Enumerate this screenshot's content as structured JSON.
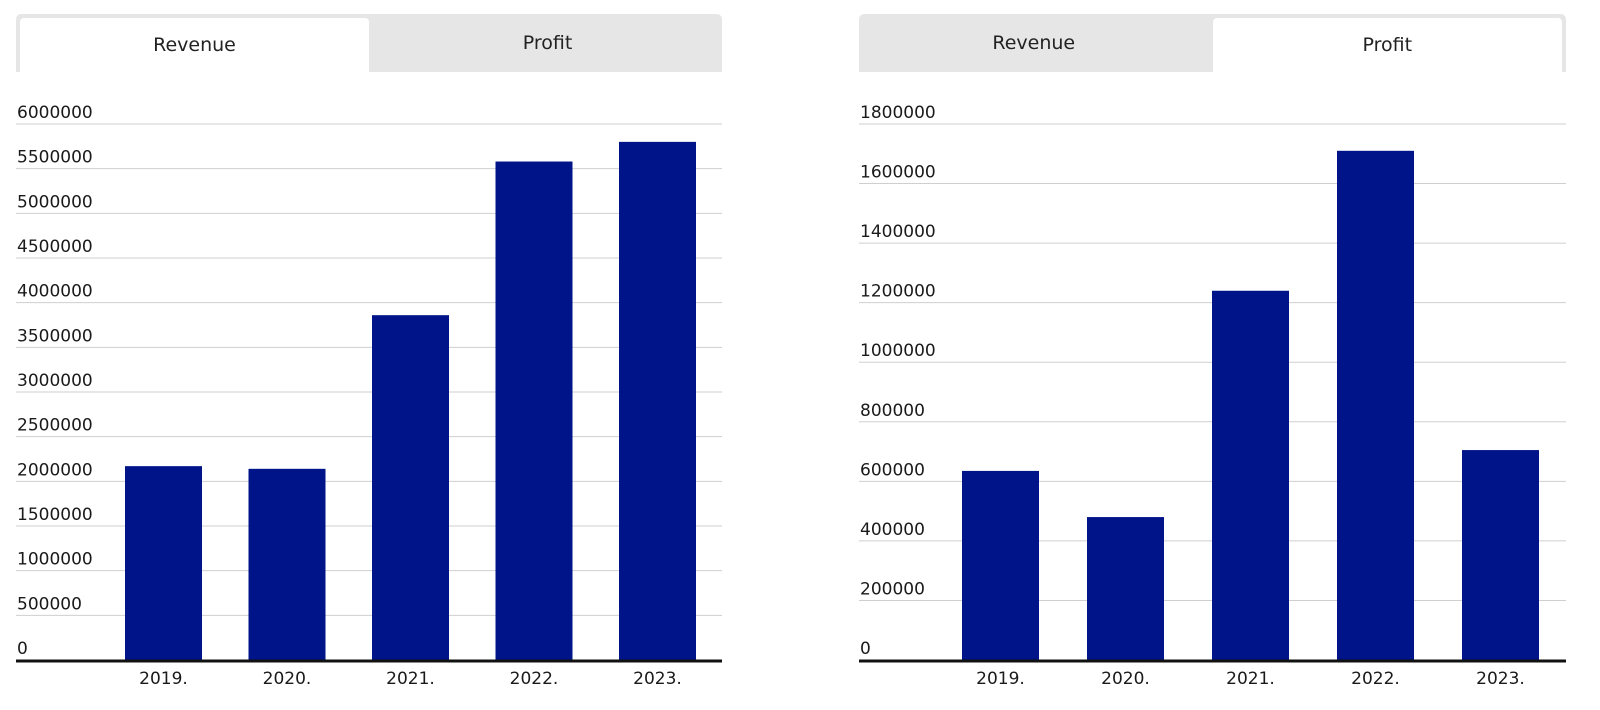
{
  "tabs": {
    "revenue_label": "Revenue",
    "profit_label": "Profit"
  },
  "colors": {
    "bar": "#001489",
    "grid": "#cfcfcf",
    "baseline": "#111111"
  },
  "chart_data": [
    {
      "type": "bar",
      "active_tab": "Revenue",
      "categories": [
        "2019.",
        "2020.",
        "2021.",
        "2022.",
        "2023."
      ],
      "values": [
        2170000,
        2140000,
        3860000,
        5580000,
        5800000
      ],
      "ylim": [
        0,
        6000000
      ],
      "yticks": [
        0,
        500000,
        1000000,
        1500000,
        2000000,
        2500000,
        3000000,
        3500000,
        4000000,
        4500000,
        5000000,
        5500000,
        6000000
      ],
      "grid": true,
      "xlabel": "",
      "ylabel": ""
    },
    {
      "type": "bar",
      "active_tab": "Profit",
      "categories": [
        "2019.",
        "2020.",
        "2021.",
        "2022.",
        "2023."
      ],
      "values": [
        635000,
        480000,
        1240000,
        1710000,
        705000
      ],
      "ylim": [
        0,
        1800000
      ],
      "yticks": [
        0,
        200000,
        400000,
        600000,
        800000,
        1000000,
        1200000,
        1400000,
        1600000,
        1800000
      ],
      "grid": true,
      "xlabel": "",
      "ylabel": ""
    }
  ]
}
